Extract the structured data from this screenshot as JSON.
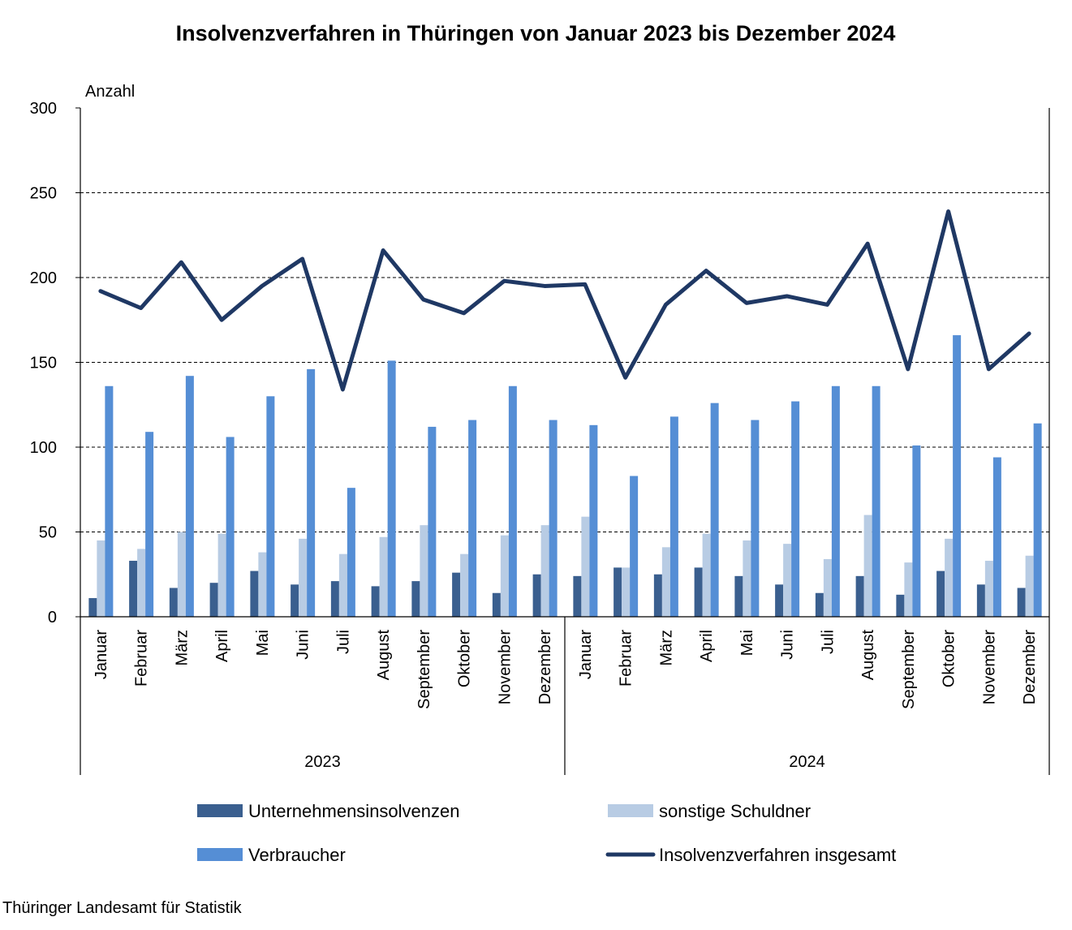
{
  "chart_data": {
    "type": "bar",
    "title": "Insolvenzverfahren in Thüringen von Januar 2023 bis Dezember 2024",
    "ylabel": "Anzahl",
    "ylim": [
      0,
      300
    ],
    "yticks": [
      0,
      50,
      100,
      150,
      200,
      250,
      300
    ],
    "grid": true,
    "legend_position": "bottom",
    "years": [
      "2023",
      "2024"
    ],
    "categories": [
      "Januar",
      "Februar",
      "März",
      "April",
      "Mai",
      "Juni",
      "Juli",
      "August",
      "September",
      "Oktober",
      "November",
      "Dezember",
      "Januar",
      "Februar",
      "März",
      "April",
      "Mai",
      "Juni",
      "Juli",
      "August",
      "September",
      "Oktober",
      "November",
      "Dezember"
    ],
    "series": [
      {
        "name": "Unternehmensinsolvenzen",
        "type": "bar",
        "color": "#3a5f8f",
        "values": [
          11,
          33,
          17,
          20,
          27,
          19,
          21,
          18,
          21,
          26,
          14,
          25,
          24,
          29,
          25,
          29,
          24,
          19,
          14,
          24,
          13,
          27,
          19,
          17
        ]
      },
      {
        "name": "sonstige Schuldner",
        "type": "bar",
        "color": "#b8cce4",
        "values": [
          45,
          40,
          50,
          49,
          38,
          46,
          37,
          47,
          54,
          37,
          48,
          54,
          59,
          29,
          41,
          49,
          45,
          43,
          34,
          60,
          32,
          46,
          33,
          36
        ]
      },
      {
        "name": "Verbraucher",
        "type": "bar",
        "color": "#558ed5",
        "values": [
          136,
          109,
          142,
          106,
          130,
          146,
          76,
          151,
          112,
          116,
          136,
          116,
          113,
          83,
          118,
          126,
          116,
          127,
          136,
          136,
          101,
          166,
          94,
          114
        ]
      },
      {
        "name": "Insolvenzverfahren insgesamt",
        "type": "line",
        "color": "#1f3864",
        "values": [
          192,
          182,
          209,
          175,
          195,
          211,
          134,
          216,
          187,
          179,
          198,
          195,
          196,
          141,
          184,
          204,
          185,
          189,
          184,
          220,
          146,
          239,
          146,
          167
        ]
      }
    ]
  },
  "source": "Thüringer Landesamt für Statistik"
}
